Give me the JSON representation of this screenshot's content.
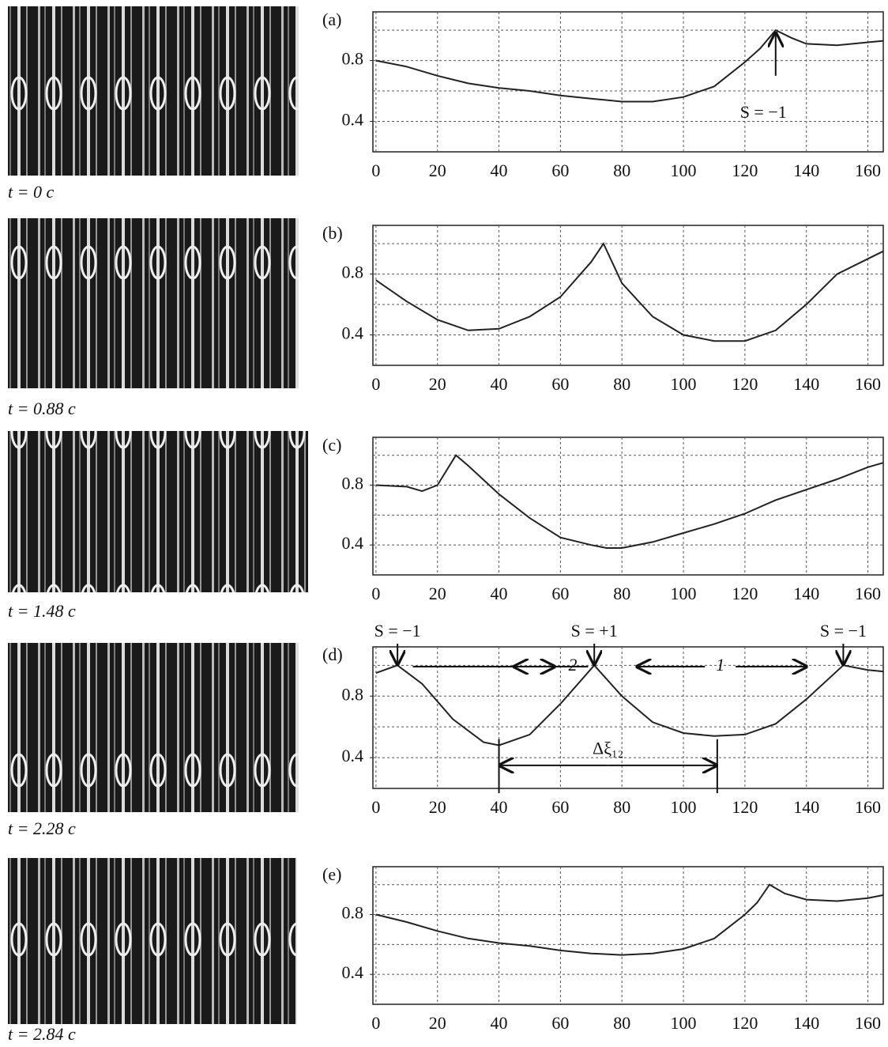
{
  "chart_data": [
    {
      "type": "line",
      "label": "(a)",
      "time_label": "t = 0 c",
      "x": [
        0,
        10,
        20,
        30,
        40,
        50,
        60,
        70,
        80,
        90,
        100,
        110,
        120,
        125,
        130,
        135,
        140,
        150,
        160,
        165
      ],
      "values": [
        0.8,
        0.76,
        0.7,
        0.65,
        0.62,
        0.6,
        0.57,
        0.55,
        0.53,
        0.53,
        0.56,
        0.63,
        0.79,
        0.88,
        1.0,
        0.95,
        0.91,
        0.9,
        0.92,
        0.93
      ],
      "color": "#222222",
      "xlim": [
        -1,
        165
      ],
      "ylim": [
        0.2,
        1.12
      ],
      "xticks": [
        0,
        20,
        40,
        60,
        80,
        100,
        120,
        140,
        160
      ],
      "yticks": [
        0.4,
        0.8
      ],
      "ygrid": [
        0.4,
        0.6,
        0.8,
        1.0
      ],
      "grid": true,
      "annotations": [
        "S = −1"
      ]
    },
    {
      "type": "line",
      "label": "(b)",
      "time_label": "t = 0.88 c",
      "x": [
        0,
        10,
        20,
        30,
        40,
        50,
        60,
        70,
        74,
        80,
        90,
        100,
        110,
        120,
        130,
        140,
        150,
        160,
        165
      ],
      "values": [
        0.76,
        0.62,
        0.5,
        0.43,
        0.44,
        0.52,
        0.65,
        0.88,
        1.0,
        0.74,
        0.52,
        0.4,
        0.36,
        0.36,
        0.43,
        0.6,
        0.8,
        0.9,
        0.95
      ],
      "color": "#222222",
      "xlim": [
        -1,
        165
      ],
      "ylim": [
        0.2,
        1.12
      ],
      "xticks": [
        0,
        20,
        40,
        60,
        80,
        100,
        120,
        140,
        160
      ],
      "yticks": [
        0.4,
        0.8
      ],
      "ygrid": [
        0.4,
        0.6,
        0.8,
        1.0
      ],
      "grid": true,
      "annotations": []
    },
    {
      "type": "line",
      "label": "(c)",
      "time_label": "t = 1.48 c",
      "x": [
        0,
        10,
        15,
        20,
        26,
        30,
        40,
        50,
        60,
        70,
        75,
        80,
        90,
        100,
        110,
        120,
        130,
        140,
        150,
        160,
        165
      ],
      "values": [
        0.8,
        0.79,
        0.76,
        0.8,
        1.0,
        0.93,
        0.74,
        0.58,
        0.45,
        0.4,
        0.38,
        0.38,
        0.42,
        0.48,
        0.54,
        0.61,
        0.7,
        0.77,
        0.84,
        0.92,
        0.95
      ],
      "color": "#222222",
      "xlim": [
        -1,
        165
      ],
      "ylim": [
        0.2,
        1.12
      ],
      "xticks": [
        0,
        20,
        40,
        60,
        80,
        100,
        120,
        140,
        160
      ],
      "yticks": [
        0.4,
        0.8
      ],
      "ygrid": [
        0.4,
        0.6,
        0.8,
        1.0
      ],
      "grid": true,
      "annotations": []
    },
    {
      "type": "line",
      "label": "(d)",
      "time_label": "t = 2.28 c",
      "x": [
        0,
        7,
        15,
        25,
        35,
        40,
        50,
        60,
        71,
        80,
        90,
        100,
        110,
        120,
        130,
        140,
        152,
        160,
        165
      ],
      "values": [
        0.95,
        1.0,
        0.88,
        0.65,
        0.5,
        0.48,
        0.55,
        0.75,
        1.0,
        0.8,
        0.63,
        0.56,
        0.54,
        0.55,
        0.62,
        0.78,
        1.0,
        0.97,
        0.96
      ],
      "color": "#222222",
      "xlim": [
        -1,
        165
      ],
      "ylim": [
        0.2,
        1.12
      ],
      "xticks": [
        0,
        20,
        40,
        60,
        80,
        100,
        120,
        140,
        160
      ],
      "yticks": [
        0.4,
        0.8
      ],
      "ygrid": [
        0.4,
        0.6,
        0.8,
        1.0
      ],
      "grid": true,
      "annotations": [
        "S = −1",
        "S = +1",
        "S = −1",
        "2",
        "1",
        "Δξ₁₂"
      ]
    },
    {
      "type": "line",
      "label": "(e)",
      "time_label": "t = 2.84 c",
      "x": [
        0,
        10,
        20,
        30,
        40,
        50,
        60,
        70,
        80,
        90,
        100,
        110,
        120,
        124,
        128,
        133,
        140,
        150,
        160,
        165
      ],
      "values": [
        0.8,
        0.75,
        0.69,
        0.64,
        0.61,
        0.59,
        0.56,
        0.54,
        0.53,
        0.54,
        0.57,
        0.64,
        0.8,
        0.88,
        1.0,
        0.94,
        0.9,
        0.89,
        0.91,
        0.93
      ],
      "color": "#222222",
      "xlim": [
        -1,
        165
      ],
      "ylim": [
        0.2,
        1.12
      ],
      "xticks": [
        0,
        20,
        40,
        60,
        80,
        100,
        120,
        140,
        160
      ],
      "yticks": [
        0.4,
        0.8
      ],
      "ygrid": [
        0.4,
        0.6,
        0.8,
        1.0
      ],
      "grid": true,
      "annotations": []
    }
  ]
}
